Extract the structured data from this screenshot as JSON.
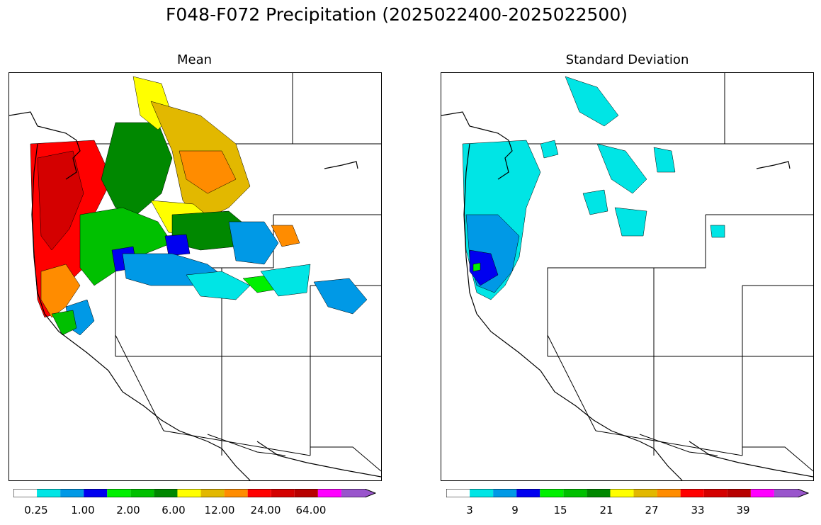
{
  "figure": {
    "title": "F048-F072 Precipitation (2025022400-2025022500)"
  },
  "panels": [
    {
      "title": "Mean",
      "colorbar": {
        "tick_labels": [
          "0.25",
          "1.00",
          "2.00",
          "6.00",
          "12.00",
          "24.00",
          "64.00"
        ],
        "colors": [
          "#ffffff",
          "#00e5e5",
          "#0099e6",
          "#0000f0",
          "#00f000",
          "#00c000",
          "#008800",
          "#ffff00",
          "#e2b800",
          "#ff8c00",
          "#ff0000",
          "#d40000",
          "#b80000",
          "#ff00ff",
          "#9955cc"
        ],
        "extend": "max"
      }
    },
    {
      "title": "Standard Deviation",
      "colorbar": {
        "tick_labels": [
          "3",
          "9",
          "15",
          "21",
          "27",
          "33",
          "39"
        ],
        "colors": [
          "#ffffff",
          "#00e5e5",
          "#0099e6",
          "#0000f0",
          "#00f000",
          "#00c000",
          "#008800",
          "#ffff00",
          "#e2b800",
          "#ff8c00",
          "#ff0000",
          "#d40000",
          "#b80000",
          "#ff00ff",
          "#9955cc"
        ],
        "extend": "max"
      }
    }
  ]
}
